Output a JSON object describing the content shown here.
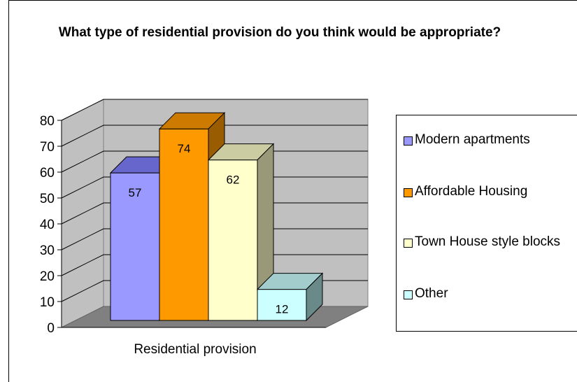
{
  "chart_data": {
    "type": "bar",
    "title": "What type of residential provision do you think would be appropriate?",
    "categories": [
      "Residential provision"
    ],
    "xlabel": "",
    "ylabel": "",
    "ylim": [
      0,
      80
    ],
    "yticks": [
      "0",
      "10",
      "20",
      "30",
      "40",
      "50",
      "60",
      "70",
      "80"
    ],
    "grid": true,
    "three_d": true,
    "legend_position": "right",
    "series": [
      {
        "name": "Modern apartments",
        "values": [
          57
        ],
        "label": "57",
        "color": "#9999ff",
        "top": "#6666cc",
        "side": "#4d4d99"
      },
      {
        "name": "Affordable Housing",
        "values": [
          74
        ],
        "label": "74",
        "color": "#ff9900",
        "top": "#cc7a00",
        "side": "#995c00"
      },
      {
        "name": "Town House style blocks",
        "values": [
          62
        ],
        "label": "62",
        "color": "#ffffcc",
        "top": "#cccca3",
        "side": "#99997a"
      },
      {
        "name": "Other",
        "values": [
          12
        ],
        "label": "12",
        "color": "#ccffff",
        "top": "#a3cccc",
        "side": "#6a8a8a"
      }
    ]
  },
  "colors": {
    "back_wall": "#c0c0c0",
    "floor": "#808080",
    "gridline": "#000000"
  }
}
